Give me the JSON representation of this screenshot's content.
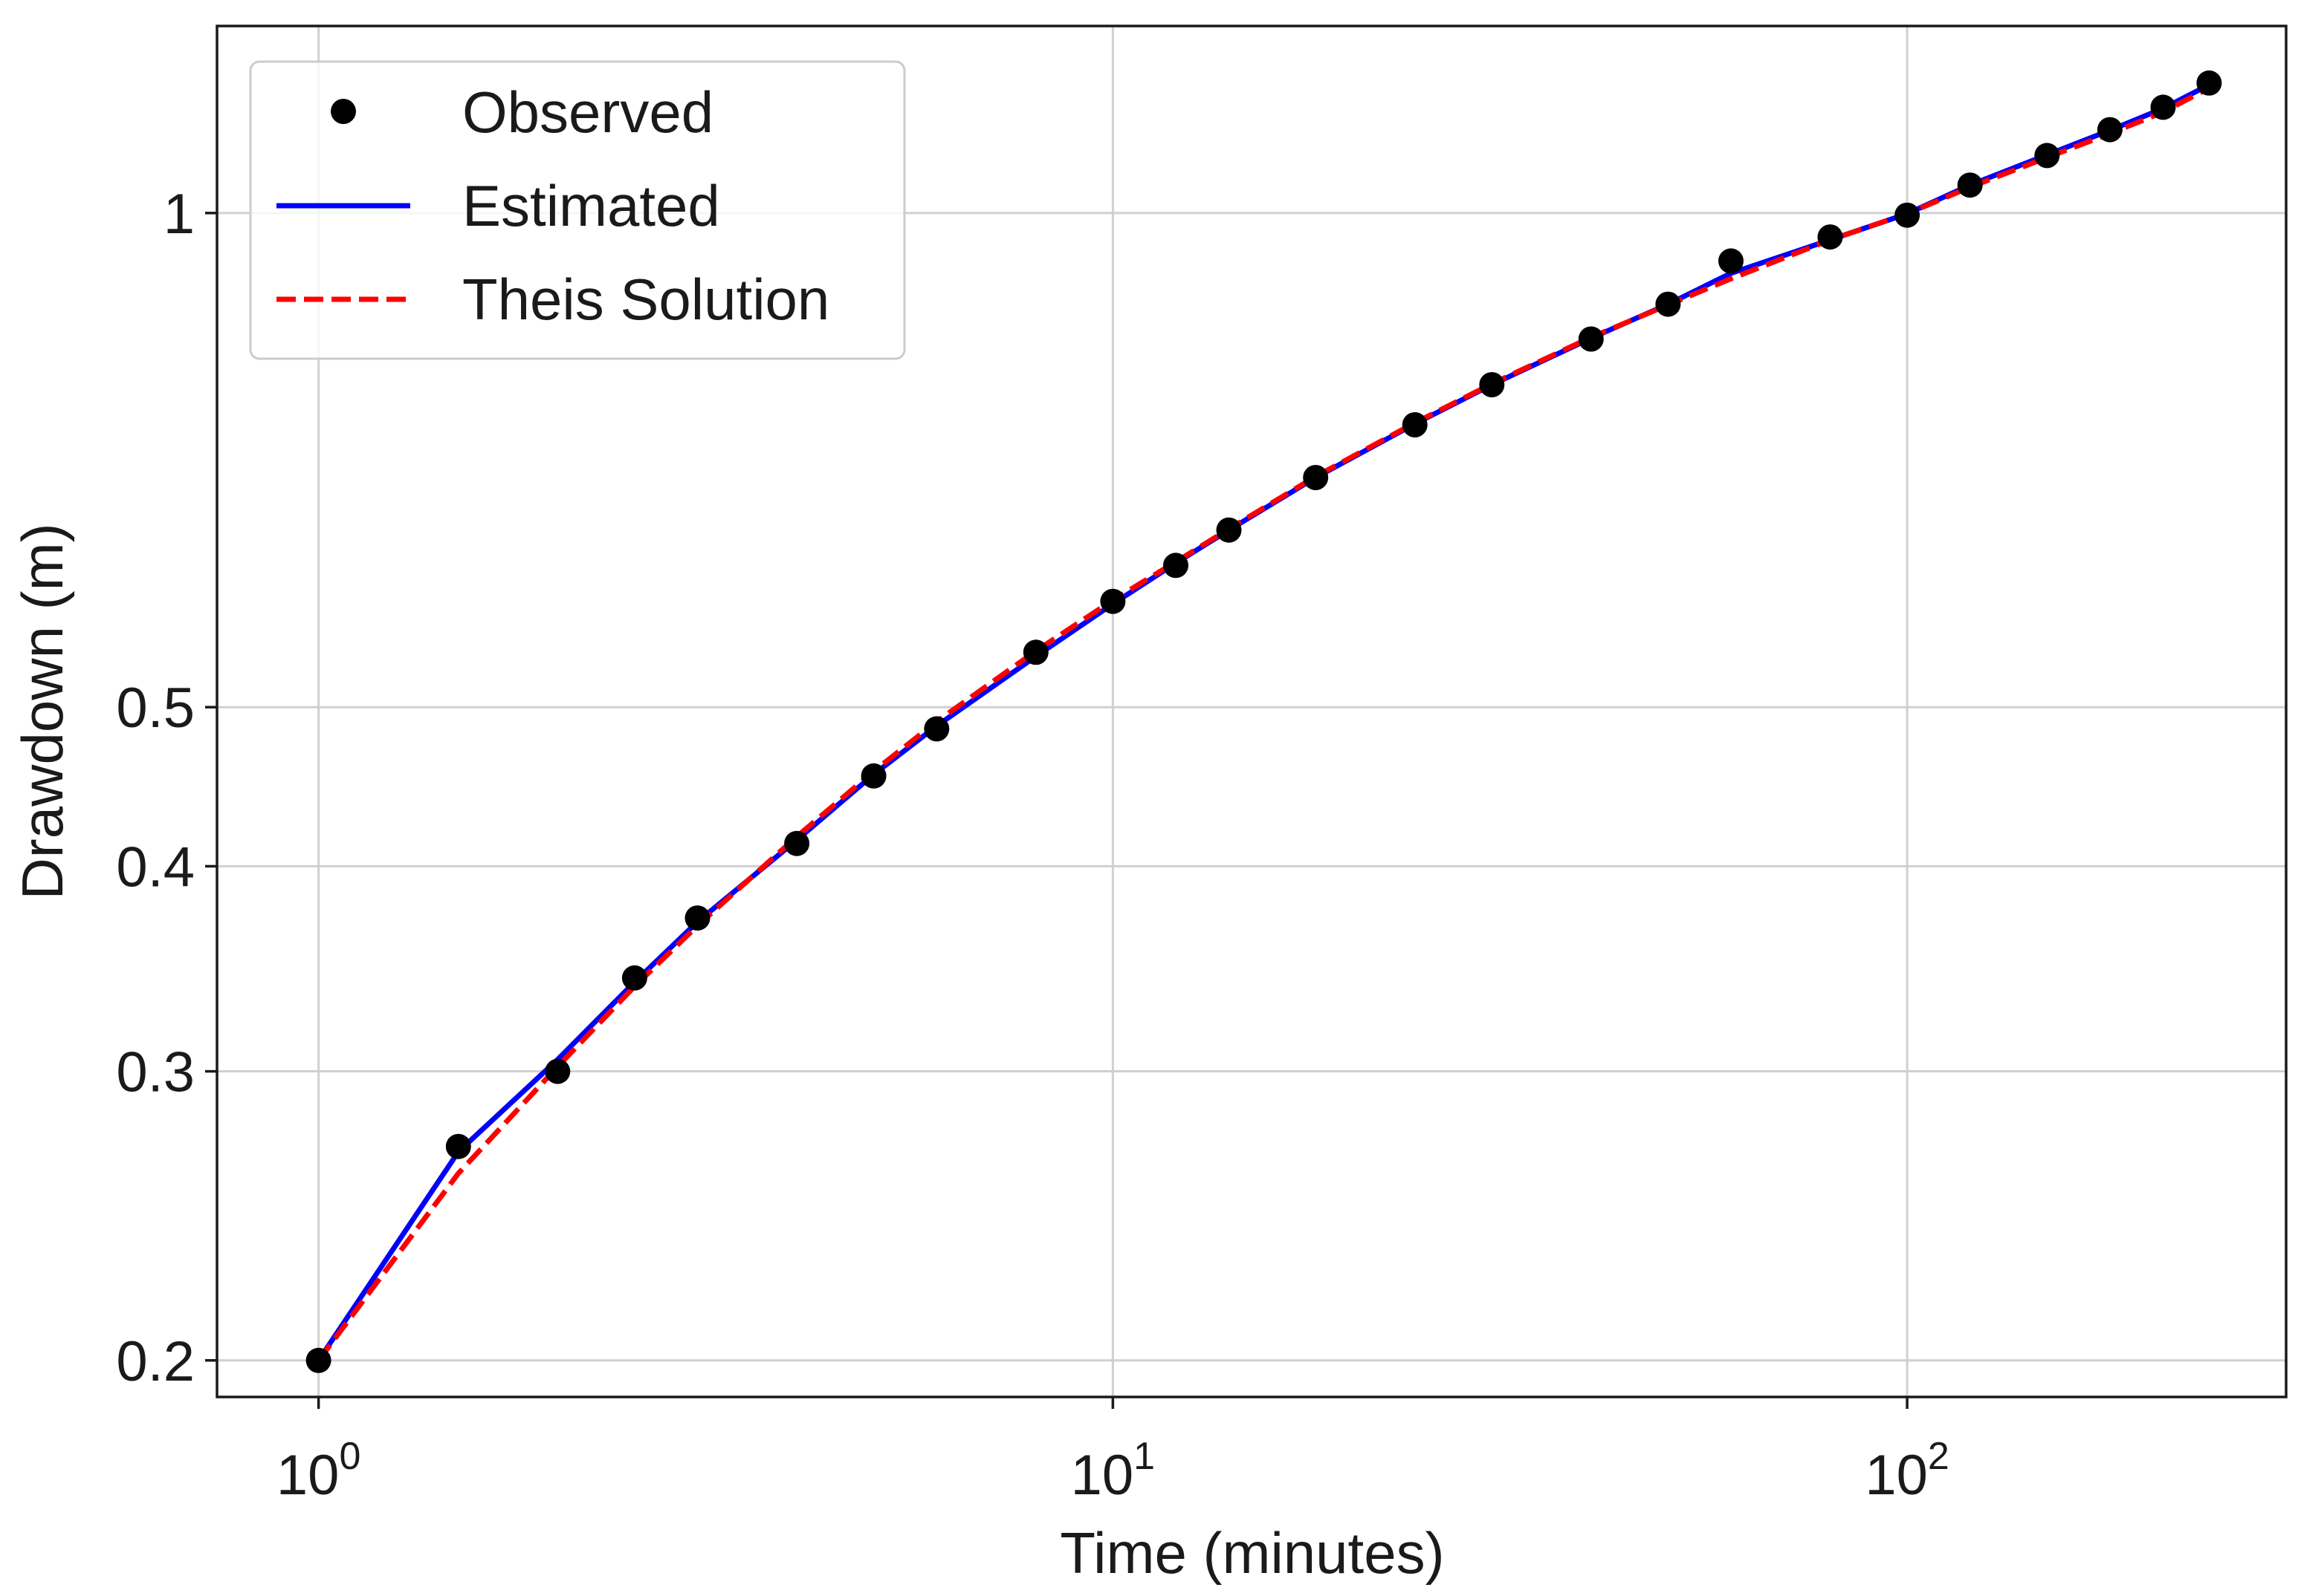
{
  "chart_data": {
    "type": "line",
    "title": "",
    "xlabel": "Time (minutes)",
    "ylabel": "Drawdown (m)",
    "xscale": "log",
    "yscale": "log",
    "xlim": [
      0.745,
      300
    ],
    "ylim": [
      0.19,
      1.3
    ],
    "grid": true,
    "legend_position": "top-left",
    "x_ticks": [
      {
        "value": 1,
        "base": "10",
        "exp": "0"
      },
      {
        "value": 10,
        "base": "10",
        "exp": "1"
      },
      {
        "value": 100,
        "base": "10",
        "exp": "2"
      }
    ],
    "y_ticks": [
      {
        "value": 0.2,
        "label": "0.2"
      },
      {
        "value": 0.3,
        "label": "0.3"
      },
      {
        "value": 0.4,
        "label": "0.4"
      },
      {
        "value": 0.5,
        "label": "0.5"
      },
      {
        "value": 1,
        "label": "1"
      }
    ],
    "x": [
      1,
      1.5,
      2,
      2.5,
      3,
      4,
      5,
      6,
      8,
      10,
      12,
      14,
      18,
      24,
      30,
      40,
      50,
      60,
      80,
      100,
      120,
      150,
      180,
      210,
      240
    ],
    "series": [
      {
        "name": "Observed",
        "style": "markers",
        "color": "#000000",
        "values": [
          0.2,
          0.27,
          0.3,
          0.342,
          0.372,
          0.413,
          0.454,
          0.485,
          0.54,
          0.58,
          0.61,
          0.641,
          0.69,
          0.743,
          0.786,
          0.838,
          0.88,
          0.935,
          0.967,
          0.997,
          1.04,
          1.084,
          1.124,
          1.16,
          1.2
        ]
      },
      {
        "name": "Estimated",
        "style": "solid",
        "color": "#0000ff",
        "values": [
          0.2,
          0.268,
          0.305,
          0.34,
          0.37,
          0.415,
          0.455,
          0.487,
          0.537,
          0.578,
          0.612,
          0.641,
          0.69,
          0.744,
          0.786,
          0.839,
          0.88,
          0.919,
          0.963,
          0.999,
          1.04,
          1.085,
          1.123,
          1.158,
          1.197
        ]
      },
      {
        "name": "Theis Solution",
        "style": "dashed",
        "color": "#ff0000",
        "values": [
          0.2,
          0.26,
          0.302,
          0.338,
          0.368,
          0.417,
          0.457,
          0.49,
          0.541,
          0.581,
          0.613,
          0.642,
          0.691,
          0.745,
          0.787,
          0.84,
          0.879,
          0.912,
          0.963,
          0.999,
          1.037,
          1.081,
          1.118,
          1.152,
          1.192
        ]
      }
    ]
  }
}
